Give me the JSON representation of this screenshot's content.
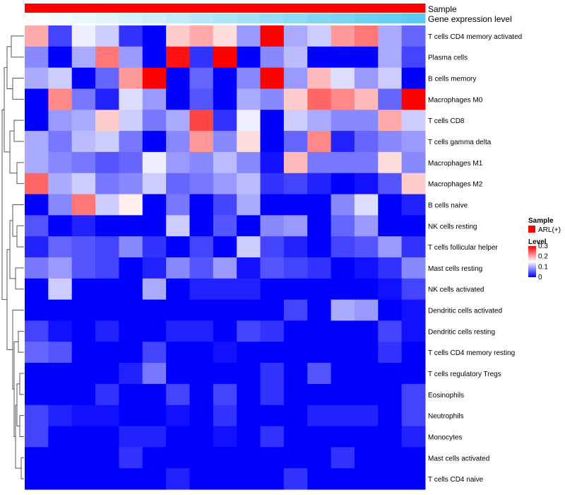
{
  "chart_data": {
    "type": "heatmap",
    "annotations": {
      "sample_label": "Sample",
      "gene_label": "Gene expression level"
    },
    "legend": {
      "sample_title": "Sample",
      "sample_entry": "ARL(+)",
      "sample_color": "#ff0000",
      "level_title": "Level",
      "level_ticks": [
        "0.3",
        "0.2",
        "0.1",
        "0"
      ],
      "level_tick_values": [
        0.3,
        0.2,
        0.1,
        0
      ]
    },
    "color_scale": {
      "min": 0,
      "max": 0.3,
      "low": "#0000ff",
      "mid": "#ffffff",
      "high": "#ff0000"
    },
    "gene_expression_gradient": [
      0.0,
      0.06,
      0.12,
      0.18,
      0.24,
      0.3,
      0.36,
      0.42,
      0.48,
      0.54,
      0.6,
      0.66,
      0.72,
      0.78,
      0.84,
      0.9,
      0.95
    ],
    "rows": [
      "T cells CD4 memory activated",
      "Plasma cells",
      "B cells memory",
      "Macrophages M0",
      "T cells CD8",
      "T cells gamma delta",
      "Macrophages M1",
      "Macrophages M2",
      "B cells naive",
      "NK cells resting",
      "T cells follicular helper",
      "Mast cells resting",
      "NK cells activated",
      "Dendritic cells activated",
      "Dendritic cells resting",
      "T cells CD4 memory resting",
      "T cells regulatory  Tregs",
      "Eosinophils",
      "Neutrophils",
      "Monocytes",
      "Mast cells activated",
      "T cells CD4 naive"
    ],
    "values": [
      [
        0.2,
        0.04,
        0.14,
        0.12,
        0.03,
        0.0,
        0.18,
        0.2,
        0.17,
        0.09,
        0.3,
        0.1,
        0.12,
        0.21,
        0.23,
        0.1,
        0.06
      ],
      [
        0.08,
        0.0,
        0.1,
        0.23,
        0.09,
        0.0,
        0.29,
        0.03,
        0.3,
        0.0,
        0.08,
        0.11,
        0.0,
        0.0,
        0.0,
        0.1,
        0.04
      ],
      [
        0.1,
        0.12,
        0.0,
        0.06,
        0.21,
        0.3,
        0.0,
        0.06,
        0.0,
        0.08,
        0.3,
        0.09,
        0.19,
        0.13,
        0.09,
        0.12,
        0.0
      ],
      [
        0.0,
        0.22,
        0.07,
        0.02,
        0.13,
        0.09,
        0.0,
        0.05,
        0.0,
        0.1,
        0.08,
        0.18,
        0.24,
        0.22,
        0.19,
        0.06,
        0.3
      ],
      [
        0.0,
        0.09,
        0.1,
        0.18,
        0.12,
        0.07,
        0.1,
        0.26,
        0.03,
        0.14,
        0.0,
        0.12,
        0.1,
        0.08,
        0.08,
        0.2,
        0.12
      ],
      [
        0.1,
        0.07,
        0.11,
        0.12,
        0.07,
        0.0,
        0.08,
        0.21,
        0.08,
        0.17,
        0.0,
        0.06,
        0.22,
        0.02,
        0.06,
        0.08,
        0.09
      ],
      [
        0.1,
        0.08,
        0.07,
        0.05,
        0.06,
        0.14,
        0.09,
        0.08,
        0.11,
        0.08,
        0.01,
        0.19,
        0.07,
        0.07,
        0.07,
        0.17,
        0.08
      ],
      [
        0.24,
        0.1,
        0.12,
        0.07,
        0.08,
        0.12,
        0.06,
        0.07,
        0.09,
        0.11,
        0.03,
        0.04,
        0.02,
        0.0,
        0.01,
        0.05,
        0.18
      ],
      [
        0.0,
        0.08,
        0.23,
        0.12,
        0.16,
        0.0,
        0.07,
        0.0,
        0.04,
        0.1,
        0.0,
        0.0,
        0.0,
        0.08,
        0.13,
        0.0,
        0.02
      ],
      [
        0.05,
        0.0,
        0.02,
        0.0,
        0.0,
        0.0,
        0.12,
        0.0,
        0.05,
        0.0,
        0.08,
        0.09,
        0.0,
        0.06,
        0.09,
        0.0,
        0.0
      ],
      [
        0.02,
        0.06,
        0.05,
        0.04,
        0.08,
        0.03,
        0.0,
        0.04,
        0.0,
        0.12,
        0.04,
        0.02,
        0.0,
        0.04,
        0.05,
        0.09,
        0.03
      ],
      [
        0.07,
        0.09,
        0.05,
        0.04,
        0.0,
        0.02,
        0.08,
        0.05,
        0.09,
        0.01,
        0.05,
        0.04,
        0.03,
        0.0,
        0.01,
        0.03,
        0.08
      ],
      [
        0.0,
        0.12,
        0.0,
        0.0,
        0.0,
        0.1,
        0.0,
        0.02,
        0.02,
        0.02,
        0.0,
        0.0,
        0.0,
        0.0,
        0.0,
        0.01,
        0.04
      ],
      [
        0.0,
        0.0,
        0.0,
        0.0,
        0.0,
        0.0,
        0.0,
        0.0,
        0.0,
        0.0,
        0.0,
        0.04,
        0.0,
        0.1,
        0.09,
        0.0,
        0.01
      ],
      [
        0.04,
        0.01,
        0.0,
        0.02,
        0.0,
        0.0,
        0.02,
        0.02,
        0.0,
        0.04,
        0.03,
        0.0,
        0.0,
        0.0,
        0.0,
        0.04,
        0.01
      ],
      [
        0.06,
        0.05,
        0.0,
        0.0,
        0.0,
        0.04,
        0.0,
        0.0,
        0.01,
        0.0,
        0.0,
        0.0,
        0.0,
        0.0,
        0.0,
        0.03,
        0.0
      ],
      [
        0.0,
        0.0,
        0.0,
        0.0,
        0.02,
        0.07,
        0.0,
        0.0,
        0.0,
        0.0,
        0.03,
        0.0,
        0.05,
        0.0,
        0.0,
        0.0,
        0.0
      ],
      [
        0.0,
        0.0,
        0.0,
        0.03,
        0.0,
        0.0,
        0.04,
        0.0,
        0.04,
        0.0,
        0.03,
        0.0,
        0.0,
        0.0,
        0.0,
        0.0,
        0.04
      ],
      [
        0.04,
        0.02,
        0.01,
        0.01,
        0.0,
        0.0,
        0.01,
        0.0,
        0.03,
        0.0,
        0.0,
        0.0,
        0.02,
        0.02,
        0.02,
        0.0,
        0.04
      ],
      [
        0.04,
        0.0,
        0.0,
        0.0,
        0.02,
        0.02,
        0.0,
        0.0,
        0.01,
        0.0,
        0.03,
        0.0,
        0.0,
        0.0,
        0.0,
        0.0,
        0.02
      ],
      [
        0.0,
        0.0,
        0.0,
        0.0,
        0.03,
        0.0,
        0.0,
        0.0,
        0.0,
        0.0,
        0.0,
        0.0,
        0.0,
        0.03,
        0.0,
        0.0,
        0.0
      ],
      [
        0.0,
        0.0,
        0.0,
        0.0,
        0.0,
        0.0,
        0.02,
        0.0,
        0.0,
        0.0,
        0.0,
        0.03,
        0.0,
        0.0,
        0.0,
        0.0,
        0.0
      ]
    ]
  }
}
